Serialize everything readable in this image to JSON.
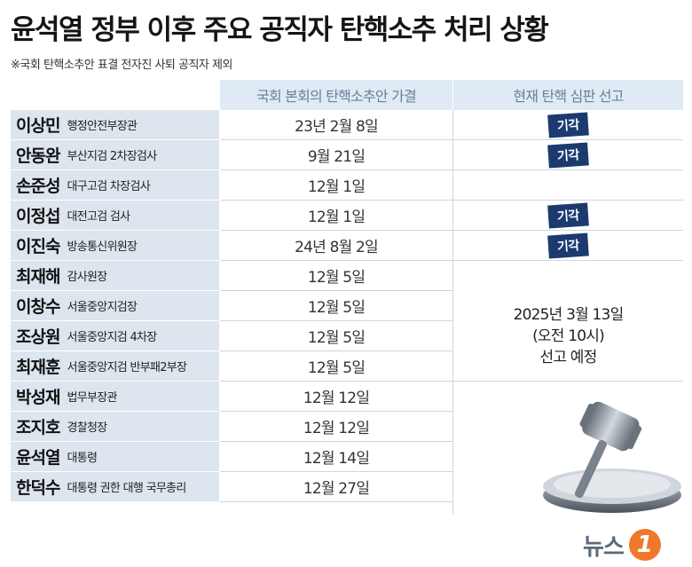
{
  "title": "윤석열 정부 이후 주요 공직자 탄핵소추 처리 상황",
  "note": "※국회 탄핵소추안 표결 전자진 사퇴 공직자 제외",
  "headers": {
    "col_passed": "국회 본회의 탄핵소추안 가결",
    "col_ruling": "현재 탄핵 심판 선고"
  },
  "rows": [
    {
      "name": "이상민",
      "position": "행정안전부장관",
      "passed": "23년 2월 8일",
      "ruling": "기각"
    },
    {
      "name": "안동완",
      "position": "부산지검 2차장검사",
      "passed": "9월 21일",
      "ruling": "기각"
    },
    {
      "name": "손준성",
      "position": "대구고검 차장검사",
      "passed": "12월 1일",
      "ruling": ""
    },
    {
      "name": "이정섭",
      "position": "대전고검 검사",
      "passed": "12월 1일",
      "ruling": "기각"
    },
    {
      "name": "이진숙",
      "position": "방송통신위원장",
      "passed": "24년 8월 2일",
      "ruling": "기각"
    },
    {
      "name": "최재해",
      "position": "감사원장",
      "passed": "12월 5일",
      "ruling": ""
    },
    {
      "name": "이창수",
      "position": "서울중앙지검장",
      "passed": "12월 5일",
      "ruling": ""
    },
    {
      "name": "조상원",
      "position": "서울중앙지검 4차장",
      "passed": "12월 5일",
      "ruling": ""
    },
    {
      "name": "최재훈",
      "position": "서울중앙지검 반부패2부장",
      "passed": "12월 5일",
      "ruling": ""
    },
    {
      "name": "박성재",
      "position": "법무부장관",
      "passed": "12월 12일",
      "ruling": ""
    },
    {
      "name": "조지호",
      "position": "경찰청장",
      "passed": "12월 12일",
      "ruling": ""
    },
    {
      "name": "윤석열",
      "position": "대통령",
      "passed": "12월 14일",
      "ruling": ""
    },
    {
      "name": "한덕수",
      "position": "대통령 권한 대행 국무총리",
      "passed": "12월 27일",
      "ruling": ""
    }
  ],
  "scheduled": {
    "line1": "2025년 3월 13일",
    "line2": "(오전 10시)",
    "line3": "선고 예정"
  },
  "logo": {
    "text": "뉴스",
    "mark": "1"
  },
  "colors": {
    "header_bg": "#dfeaf5",
    "name_bg": "#dde6ee",
    "badge_bg": "#1c3a6e",
    "logo_orange": "#f0782a"
  }
}
